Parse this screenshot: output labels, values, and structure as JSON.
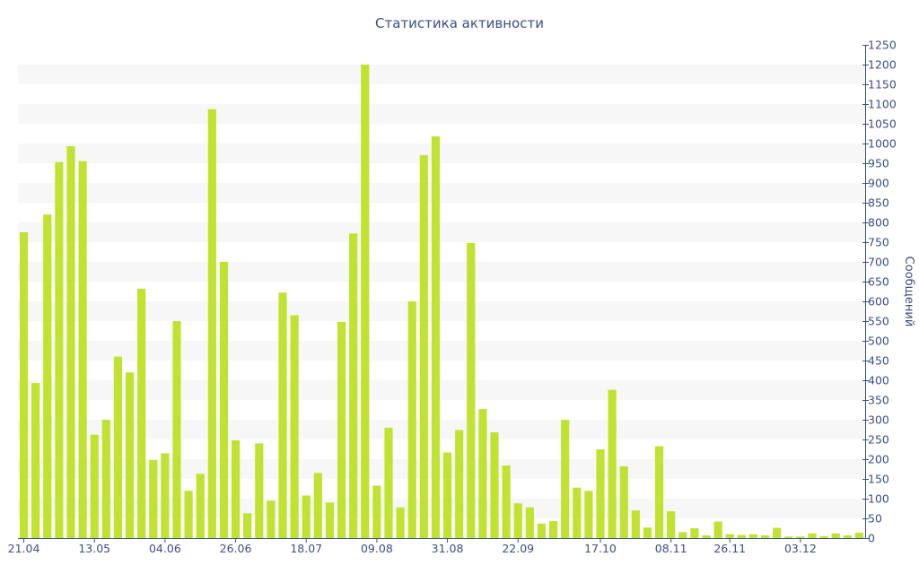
{
  "chart_data": {
    "type": "bar",
    "title": "Статистика активности",
    "ylabel": "Сообщений",
    "xlabel": "",
    "ylim": [
      0,
      1250
    ],
    "y_ticks": [
      0,
      50,
      100,
      150,
      200,
      250,
      300,
      350,
      400,
      450,
      500,
      550,
      600,
      650,
      700,
      750,
      800,
      850,
      900,
      950,
      1000,
      1050,
      1100,
      1150,
      1200,
      1250
    ],
    "y_axis_position": "right",
    "grid": "alternating horizontal bands",
    "legend": "none",
    "x_tick_labels": [
      {
        "label": "21.04",
        "index": 0
      },
      {
        "label": "13.05",
        "index": 6
      },
      {
        "label": "04.06",
        "index": 12
      },
      {
        "label": "26.06",
        "index": 18
      },
      {
        "label": "18.07",
        "index": 24
      },
      {
        "label": "09.08",
        "index": 30
      },
      {
        "label": "31.08",
        "index": 36
      },
      {
        "label": "22.09",
        "index": 42
      },
      {
        "label": "17.10",
        "index": 49
      },
      {
        "label": "08.11",
        "index": 55
      },
      {
        "label": "26.11",
        "index": 60
      },
      {
        "label": "03.12",
        "index": 66
      }
    ],
    "values": [
      775,
      393,
      820,
      953,
      993,
      955,
      262,
      300,
      460,
      420,
      632,
      198,
      215,
      550,
      120,
      163,
      1087,
      700,
      248,
      63,
      240,
      95,
      622,
      565,
      108,
      165,
      90,
      548,
      772,
      1200,
      133,
      280,
      78,
      600,
      970,
      1018,
      217,
      274,
      748,
      327,
      268,
      184,
      88,
      78,
      37,
      43,
      300,
      128,
      120,
      225,
      376,
      182,
      70,
      27,
      233,
      68,
      15,
      25,
      7,
      42,
      10,
      8,
      10,
      7,
      26,
      4,
      4,
      12,
      5,
      12,
      7,
      14
    ],
    "bar_color": "#bfe330",
    "band_color": "#f7f7f7",
    "text_color": "#3b4f86"
  }
}
